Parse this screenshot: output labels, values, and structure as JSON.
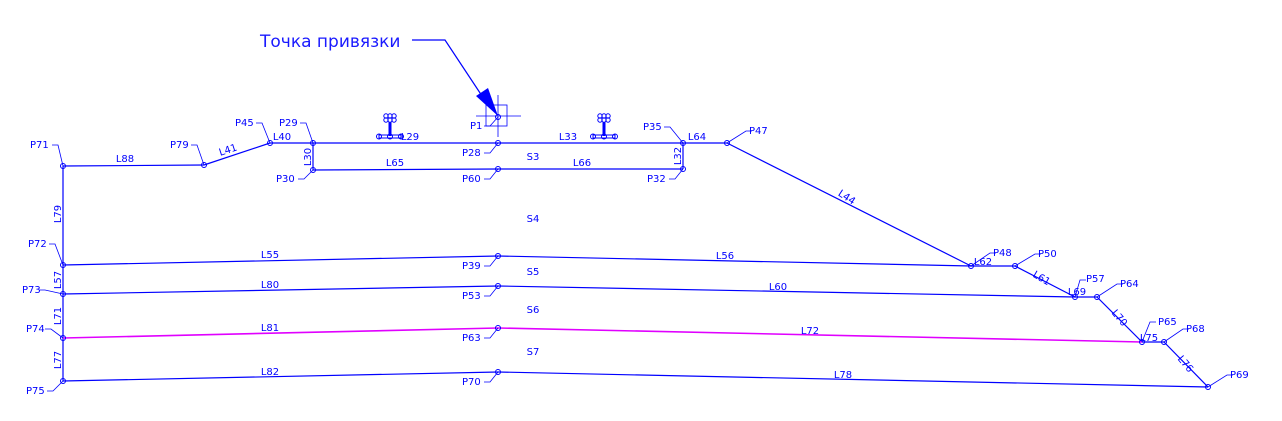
{
  "annotation": {
    "text": "Точка привязки"
  },
  "colors": {
    "line": "#0000ff",
    "highlight": "#e000ff",
    "background": "#ffffff"
  },
  "points": [
    "P1",
    "P28",
    "P29",
    "P30",
    "P32",
    "P35",
    "P39",
    "P45",
    "P47",
    "P48",
    "P50",
    "P53",
    "P57",
    "P60",
    "P63",
    "P64",
    "P65",
    "P68",
    "P69",
    "P70",
    "P71",
    "P72",
    "P73",
    "P74",
    "P75",
    "P79"
  ],
  "lines": [
    {
      "name": "L88",
      "from": "P71",
      "to": "P79"
    },
    {
      "name": "L41",
      "from": "P79",
      "to": "P45"
    },
    {
      "name": "L40",
      "from": "P45",
      "to": "P29"
    },
    {
      "name": "L29",
      "from": "P29",
      "to": "P28"
    },
    {
      "name": "L33",
      "from": "P28",
      "to": "P35"
    },
    {
      "name": "L64",
      "from": "P35",
      "to": "P47"
    },
    {
      "name": "L44",
      "from": "P47",
      "to": "P48"
    },
    {
      "name": "L62",
      "from": "P48",
      "to": "P50"
    },
    {
      "name": "L61",
      "from": "P50",
      "to": "P57"
    },
    {
      "name": "L69",
      "from": "P57",
      "to": "P64"
    },
    {
      "name": "L70",
      "from": "P64",
      "to": "P65"
    },
    {
      "name": "L75",
      "from": "P65",
      "to": "P68"
    },
    {
      "name": "L76",
      "from": "P68",
      "to": "P69"
    },
    {
      "name": "L30",
      "from": "P29",
      "to": "P30"
    },
    {
      "name": "L65",
      "from": "P30",
      "to": "P60"
    },
    {
      "name": "L66",
      "from": "P60",
      "to": "P32"
    },
    {
      "name": "L32",
      "from": "P35",
      "to": "P32"
    },
    {
      "name": "L79",
      "from": "P71",
      "to": "P72"
    },
    {
      "name": "L57",
      "from": "P72",
      "to": "P73"
    },
    {
      "name": "L71",
      "from": "P73",
      "to": "P74"
    },
    {
      "name": "L77",
      "from": "P74",
      "to": "P75"
    },
    {
      "name": "L55",
      "from": "P72",
      "to": "P39"
    },
    {
      "name": "L56",
      "from": "P39",
      "to": "P48"
    },
    {
      "name": "L80",
      "from": "P73",
      "to": "P53"
    },
    {
      "name": "L60",
      "from": "P53",
      "to": "P57"
    },
    {
      "name": "L81",
      "from": "P74",
      "to": "P63",
      "highlight": true
    },
    {
      "name": "L72",
      "from": "P63",
      "to": "P65",
      "highlight": true
    },
    {
      "name": "L82",
      "from": "P75",
      "to": "P70"
    },
    {
      "name": "L78",
      "from": "P70",
      "to": "P69"
    }
  ],
  "regions": [
    "S3",
    "S4",
    "S5",
    "S6",
    "S7"
  ],
  "symbols": [
    "rail-fastener-left",
    "rail-fastener-right"
  ]
}
